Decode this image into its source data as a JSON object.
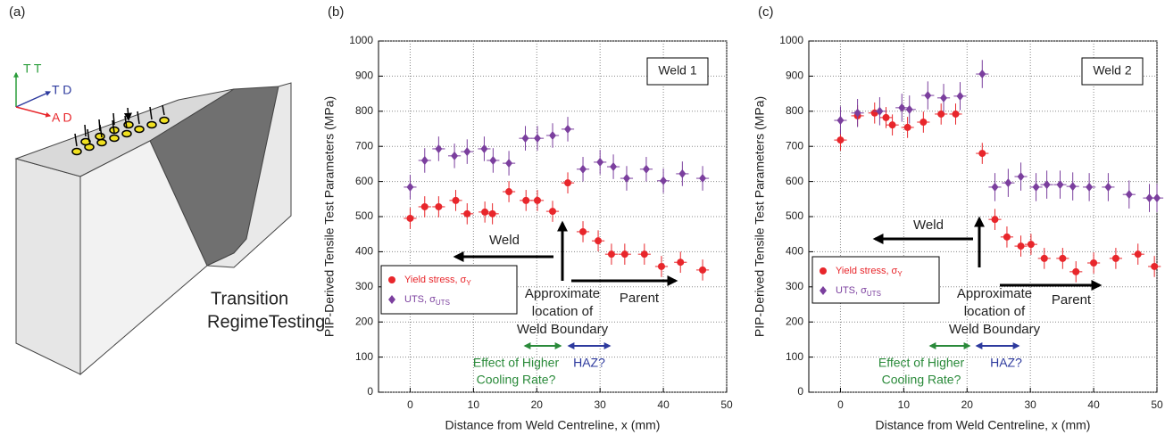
{
  "figure_a": {
    "label": "(a)",
    "axes": [
      "T T",
      "T D",
      "A D"
    ],
    "caption": [
      "Transition",
      "RegimeTesting"
    ]
  },
  "chart_data": [
    {
      "type": "scatter",
      "label": "(b)",
      "box_label": "Weld 1",
      "ylabel": "PIP-Derived Tensile Test Parameters (MPa)",
      "xlabel": "Distance from Weld Centreline, x (mm)",
      "xlim": [
        -5,
        50
      ],
      "xticks": [
        0,
        10,
        20,
        30,
        40,
        50
      ],
      "ylim": [
        0,
        1000
      ],
      "yticks": [
        0,
        100,
        200,
        300,
        400,
        500,
        600,
        700,
        800,
        900,
        1000
      ],
      "grid": true,
      "annotations": {
        "weld": "Weld",
        "boundary": [
          "Approximate",
          "location of",
          "Weld Boundary"
        ],
        "parent": "Parent",
        "cooling": [
          "Effect of Higher",
          "Cooling Rate?"
        ],
        "haz": "HAZ?"
      },
      "series": [
        {
          "name": "Yield stress, σ",
          "subscript": "Y",
          "color": "#e8262b",
          "marker": "circle",
          "xerr": 1,
          "yerr": 30,
          "x": [
            0,
            2.3,
            4.5,
            7.2,
            9,
            11.8,
            13,
            15.6,
            18.3,
            20.1,
            22.5,
            24.9,
            27.3,
            29.7,
            31.8,
            33.9,
            37,
            39.7,
            42.7,
            46.2
          ],
          "values": [
            495,
            528,
            528,
            546,
            508,
            513,
            508,
            571,
            546,
            546,
            515,
            596,
            457,
            431,
            393,
            393,
            393,
            358,
            370,
            348
          ]
        },
        {
          "name": "UTS, σ",
          "subscript": "UTS",
          "color": "#7b3f9e",
          "marker": "diamond",
          "xerr": 1,
          "yerr": 35,
          "x": [
            0,
            2.3,
            4.5,
            7.0,
            9,
            11.7,
            13.1,
            15.6,
            18.2,
            20.1,
            22.5,
            24.9,
            27.3,
            30.0,
            32.1,
            34.2,
            37.3,
            40.0,
            43.0,
            46.2
          ],
          "values": [
            584,
            660,
            693,
            673,
            685,
            693,
            660,
            652,
            723,
            723,
            731,
            749,
            635,
            655,
            642,
            609,
            635,
            602,
            622,
            609
          ]
        }
      ]
    },
    {
      "type": "scatter",
      "label": "(c)",
      "box_label": "Weld 2",
      "ylabel": "PIP-Derived Tensile Test Parameters (MPa)",
      "xlabel": "Distance from Weld Centreline, x (mm)",
      "xlim": [
        -5,
        50
      ],
      "xticks": [
        0,
        10,
        20,
        30,
        40,
        50
      ],
      "ylim": [
        0,
        1000
      ],
      "yticks": [
        0,
        100,
        200,
        300,
        400,
        500,
        600,
        700,
        800,
        900,
        1000
      ],
      "grid": true,
      "annotations": {
        "weld": "Weld",
        "boundary": [
          "Approximate",
          "location of",
          "Weld Boundary"
        ],
        "parent": "Parent",
        "cooling": [
          "Effect of Higher",
          "Cooling Rate?"
        ],
        "haz": "HAZ?"
      },
      "series": [
        {
          "name": "Yield stress, σ",
          "subscript": "Y",
          "color": "#e8262b",
          "marker": "circle",
          "xerr": 1,
          "yerr": 30,
          "x": [
            0,
            2.7,
            5.4,
            7.2,
            8.2,
            10.6,
            13.1,
            15.9,
            18.2,
            22.4,
            24.4,
            26.3,
            28.5,
            30.1,
            32.2,
            35.1,
            37.2,
            40,
            43.5,
            47,
            49.6
          ],
          "values": [
            718,
            787,
            795,
            782,
            761,
            754,
            769,
            792,
            792,
            680,
            492,
            442,
            416,
            421,
            381,
            381,
            343,
            368,
            381,
            393,
            358
          ]
        },
        {
          "name": "UTS, σ",
          "subscript": "UTS",
          "color": "#7b3f9e",
          "marker": "diamond",
          "xerr": 1,
          "yerr": 40,
          "x": [
            0,
            2.7,
            6.2,
            9.7,
            10.9,
            13.8,
            16.3,
            18.9,
            22.4,
            24.4,
            26.5,
            28.5,
            30.9,
            32.6,
            34.7,
            36.7,
            39.3,
            42.3,
            45.6,
            48.8,
            50
          ],
          "values": [
            774,
            795,
            800,
            810,
            805,
            845,
            838,
            843,
            906,
            584,
            596,
            614,
            584,
            591,
            591,
            586,
            584,
            584,
            563,
            553,
            553
          ]
        }
      ]
    }
  ]
}
